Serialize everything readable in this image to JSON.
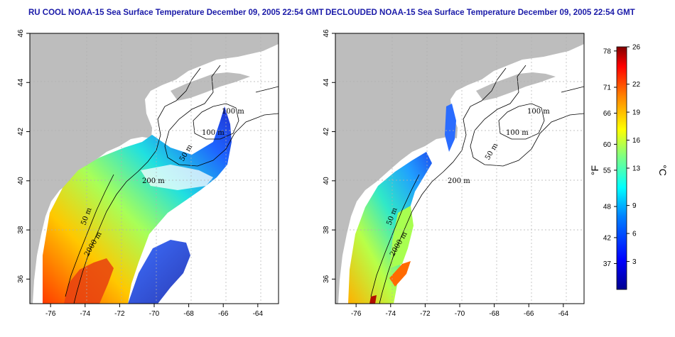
{
  "panels": [
    {
      "title": "RU COOL NOAA-15 Sea Surface Temperature December 09, 2005 22:54 GMT",
      "contour_labels": [
        "100 m",
        "100 m",
        "50 m",
        "200 m",
        "50 m",
        "2000 m"
      ]
    },
    {
      "title": "DECLOUDED NOAA-15 Sea Surface Temperature December 09, 2005 22:54 GMT",
      "contour_labels": [
        "100 m",
        "100 m",
        "50 m",
        "200 m",
        "50 m",
        "2000 m"
      ]
    }
  ],
  "axes": {
    "lon_ticks": [
      "-76",
      "-74",
      "-72",
      "-70",
      "-68",
      "-66",
      "-64"
    ],
    "lat_ticks": [
      "36",
      "38",
      "40",
      "42",
      "44",
      "46"
    ],
    "lon_range": [
      -77.2,
      -62.8
    ],
    "lat_range": [
      35,
      46
    ]
  },
  "colorbar": {
    "fahrenheit_ticks": [
      "78",
      "71",
      "66",
      "60",
      "55",
      "48",
      "42",
      "37"
    ],
    "celsius_ticks": [
      "26",
      "22",
      "19",
      "16",
      "13",
      "9",
      "6",
      "3"
    ],
    "fahrenheit_unit": "°F",
    "celsius_unit": "°C",
    "celsius_range": [
      0,
      26
    ]
  },
  "colors": {
    "land": "#bdbdbd",
    "title": "#1a1aa8",
    "grid": "#b0b0b0",
    "palette": [
      "#00008f",
      "#0000ff",
      "#0080ff",
      "#00ffff",
      "#80ff80",
      "#ffff00",
      "#ff8000",
      "#ff0000",
      "#800000"
    ]
  }
}
